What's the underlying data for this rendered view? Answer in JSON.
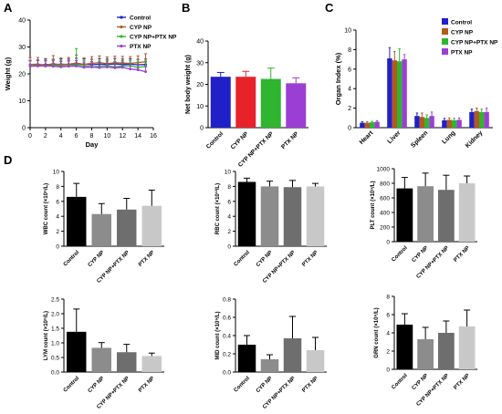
{
  "panel_letters": [
    "A",
    "B",
    "C",
    "D"
  ],
  "colors": {
    "control": "#2020c8",
    "cyp": "#b35a1f",
    "cyp_ptx": "#2fb52f",
    "ptx": "#9b3fd4",
    "gray_bars": [
      "#000000",
      "#8c8c8c",
      "#6e6e6e",
      "#c8c8c8"
    ]
  },
  "chart_data": [
    {
      "id": "A",
      "type": "line",
      "xlabel": "Day",
      "ylabel": "Weight (g)",
      "xlim": [
        0,
        16
      ],
      "ylim": [
        0,
        40
      ],
      "xticks": [
        "0",
        "2",
        "4",
        "6",
        "8",
        "10",
        "12",
        "14",
        "16"
      ],
      "yticks": [
        "0",
        "10",
        "20",
        "30",
        "40"
      ],
      "legend": "top-right",
      "x": [
        0,
        1,
        2,
        3,
        4,
        5,
        6,
        7,
        8,
        9,
        10,
        11,
        12,
        13,
        14,
        15
      ],
      "series": [
        {
          "name": "Control",
          "color": "#2020c8",
          "values": [
            23,
            23.2,
            23.5,
            23.4,
            23.6,
            23.5,
            23.8,
            23.6,
            23.4,
            23.6,
            23.5,
            23.7,
            23.5,
            23.6,
            23.4,
            23.5
          ],
          "err": [
            2,
            2,
            2,
            2,
            2,
            2,
            2,
            2,
            2,
            2,
            2,
            2,
            2,
            2,
            2,
            2
          ]
        },
        {
          "name": "CYP NP",
          "color": "#b35a1f",
          "values": [
            23.5,
            23.6,
            23.2,
            23.8,
            23.4,
            23.6,
            24,
            23.5,
            23.9,
            24.2,
            23.8,
            24.1,
            24,
            23.9,
            24.2,
            24.5
          ],
          "err": [
            2.5,
            2.5,
            2.5,
            3,
            2.5,
            2.5,
            3,
            2.5,
            2.5,
            2.5,
            2.5,
            2.5,
            2.5,
            2.5,
            2.5,
            3
          ]
        },
        {
          "name": "CYP NP+PTX NP",
          "color": "#2fb52f",
          "values": [
            23,
            23.1,
            22.8,
            23.2,
            23,
            22.9,
            23.4,
            23,
            22.6,
            22.8,
            23,
            22.6,
            22.9,
            23,
            22.4,
            22.8
          ],
          "err": [
            2,
            2,
            2,
            2,
            2,
            2,
            6,
            2,
            2,
            2,
            2,
            2,
            2,
            2,
            2,
            2
          ]
        },
        {
          "name": "PTX NP",
          "color": "#9b3fd4",
          "values": [
            22.8,
            22.9,
            23,
            22.8,
            22.6,
            22.8,
            22.9,
            22.4,
            22.5,
            22.3,
            22.5,
            22.2,
            22.4,
            21.8,
            21.5,
            20.8
          ],
          "err": [
            2,
            2,
            2,
            2,
            2,
            2,
            2,
            2,
            2,
            2,
            2,
            2,
            2,
            2,
            2,
            2
          ]
        }
      ]
    },
    {
      "id": "B",
      "type": "bar",
      "ylabel": "Net body weight (g)",
      "ylim": [
        0,
        40
      ],
      "yticks": [
        "0",
        "10",
        "20",
        "30",
        "40"
      ],
      "categories": [
        "Control",
        "CYP NP",
        "CYP NP+PTX NP",
        "PTX NP"
      ],
      "values": [
        23.5,
        23.5,
        22.5,
        20.5
      ],
      "err": [
        2,
        2.5,
        5,
        2.5
      ],
      "colors": [
        "#2020c8",
        "#e8222a",
        "#2fb52f",
        "#9b3fd4"
      ]
    },
    {
      "id": "C",
      "type": "bar",
      "ylabel": "Organ Index (%)",
      "ylim": [
        0,
        10
      ],
      "yticks": [
        "0",
        "2",
        "4",
        "6",
        "8",
        "10"
      ],
      "legend": "top-right",
      "categories": [
        "Heart",
        "Liver",
        "Spleen",
        "Lung",
        "Kidney"
      ],
      "series": [
        {
          "name": "Control",
          "color": "#2020c8",
          "values": [
            0.5,
            7.1,
            1.2,
            0.75,
            1.6
          ],
          "err": [
            0.1,
            1.1,
            0.3,
            0.2,
            0.3
          ]
        },
        {
          "name": "CYP NP",
          "color": "#b35a1f",
          "values": [
            0.5,
            6.9,
            1.1,
            0.8,
            1.7
          ],
          "err": [
            0.1,
            0.9,
            0.4,
            0.2,
            0.3
          ]
        },
        {
          "name": "CYP NP+PTX NP",
          "color": "#2fb52f",
          "values": [
            0.55,
            6.8,
            1.0,
            0.75,
            1.6
          ],
          "err": [
            0.1,
            1.3,
            0.3,
            0.2,
            0.3
          ]
        },
        {
          "name": "PTX NP",
          "color": "#9b3fd4",
          "values": [
            0.6,
            7.0,
            1.2,
            0.8,
            1.6
          ],
          "err": [
            0.1,
            0.5,
            0.4,
            0.2,
            0.4
          ]
        }
      ]
    },
    {
      "id": "WBC",
      "type": "bar",
      "ylabel": "WBC count (×10⁹/L)",
      "ylim": [
        0,
        10
      ],
      "yticks": [
        "0",
        "2",
        "4",
        "6",
        "8",
        "10"
      ],
      "categories": [
        "Control",
        "CYP NP",
        "CYP NP+PTX NP",
        "PTX NP"
      ],
      "values": [
        6.6,
        4.3,
        4.9,
        5.4
      ],
      "err": [
        1.8,
        1.4,
        1.5,
        2.1
      ]
    },
    {
      "id": "RBC",
      "type": "bar",
      "ylabel": "RBC count (×10¹²/L)",
      "ylim": [
        0,
        10
      ],
      "yticks": [
        "0",
        "2",
        "4",
        "6",
        "8",
        "10"
      ],
      "categories": [
        "Control",
        "CYP NP",
        "CYP NP+PTX NP",
        "PTX NP"
      ],
      "values": [
        8.6,
        8.0,
        7.9,
        8.0
      ],
      "err": [
        0.5,
        0.7,
        0.9,
        0.4
      ]
    },
    {
      "id": "PLT",
      "type": "bar",
      "ylabel": "PLT count (×10⁹/L)",
      "ylim": [
        0,
        1000
      ],
      "yticks": [
        "0",
        "200",
        "400",
        "600",
        "800",
        "1000"
      ],
      "categories": [
        "Control",
        "CYP NP",
        "CYP NP+PTX NP",
        "PTX NP"
      ],
      "values": [
        730,
        760,
        710,
        800
      ],
      "err": [
        150,
        180,
        200,
        100
      ]
    },
    {
      "id": "LYM",
      "type": "bar",
      "ylabel": "LYM count (×10⁹/L)",
      "ylim": [
        0,
        2.5
      ],
      "yticks": [
        "0.0",
        "0.5",
        "1.0",
        "1.5",
        "2.0",
        "2.5"
      ],
      "categories": [
        "Control",
        "CYP NP",
        "CYP NP+PTX NP",
        "PTX NP"
      ],
      "values": [
        1.38,
        0.83,
        0.68,
        0.55
      ],
      "err": [
        0.78,
        0.18,
        0.27,
        0.1
      ]
    },
    {
      "id": "MID",
      "type": "bar",
      "ylabel": "MID count (×10⁹/L)",
      "ylim": [
        0,
        0.8
      ],
      "yticks": [
        "0.0",
        "0.2",
        "0.4",
        "0.6",
        "0.8"
      ],
      "categories": [
        "Control",
        "CYP NP",
        "CYP NP+PTX NP",
        "PTX NP"
      ],
      "values": [
        0.3,
        0.14,
        0.37,
        0.24
      ],
      "err": [
        0.1,
        0.05,
        0.24,
        0.14
      ]
    },
    {
      "id": "GRN",
      "type": "bar",
      "ylabel": "GRN count (×10⁹/L)",
      "ylim": [
        0,
        8
      ],
      "yticks": [
        "0",
        "2",
        "4",
        "6",
        "8"
      ],
      "categories": [
        "Control",
        "CYP NP",
        "CYP NP+PTX NP",
        "PTX NP"
      ],
      "values": [
        4.9,
        3.3,
        4.0,
        4.7
      ],
      "err": [
        1.2,
        1.3,
        1.3,
        1.8
      ]
    }
  ]
}
